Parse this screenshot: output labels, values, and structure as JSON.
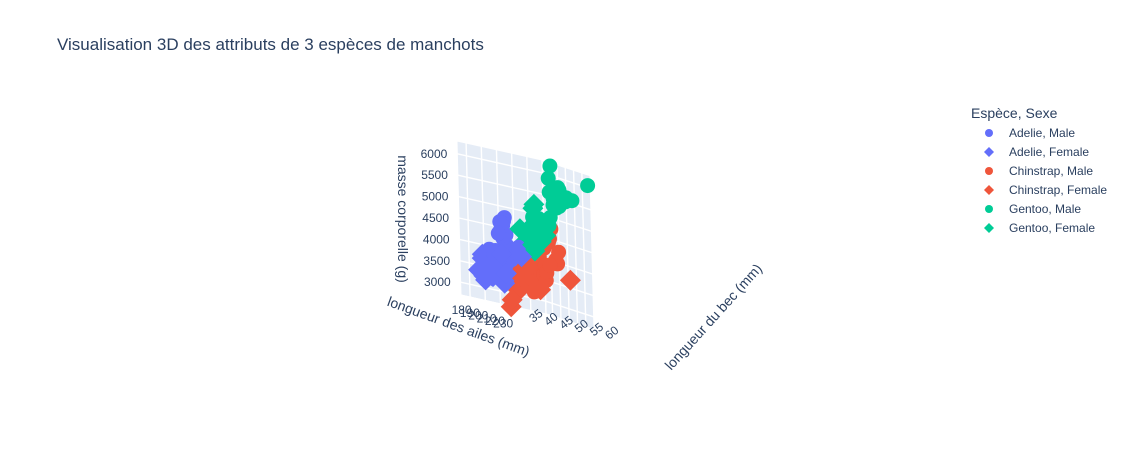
{
  "chart_data": {
    "type": "scatter3d",
    "title": "Visualisation 3D des attributs de 3 espèces de manchots",
    "axes": {
      "x": {
        "label": "longueur des ailes (mm)",
        "ticks": [
          "180",
          "190",
          "200",
          "210",
          "220",
          "230"
        ],
        "range": [
          172,
          231
        ]
      },
      "y": {
        "label": "longueur du bec (mm)",
        "ticks": [
          "35",
          "40",
          "45",
          "50",
          "55",
          "60"
        ],
        "range": [
          32,
          60
        ]
      },
      "z": {
        "label": "masse corporelle (g)",
        "ticks": [
          "3000",
          "3500",
          "4000",
          "4500",
          "5000",
          "5500",
          "6000"
        ],
        "range": [
          2700,
          6300
        ]
      }
    },
    "legend": {
      "title": "Espèce, Sexe",
      "position": "top-right",
      "entries": [
        {
          "label": "Adelie, Male",
          "symbol": "circle",
          "color": "#636efa"
        },
        {
          "label": "Adelie, Female",
          "symbol": "diamond",
          "color": "#636efa"
        },
        {
          "label": "Chinstrap, Male",
          "symbol": "circle",
          "color": "#ef553b"
        },
        {
          "label": "Chinstrap, Female",
          "symbol": "diamond",
          "color": "#ef553b"
        },
        {
          "label": "Gentoo, Male",
          "symbol": "circle",
          "color": "#00cc96"
        },
        {
          "label": "Gentoo, Female",
          "symbol": "diamond",
          "color": "#00cc96"
        }
      ]
    },
    "series": [
      {
        "name": "Adelie, Male",
        "symbol": "circle",
        "color": "#636efa",
        "points": [
          [
            181,
            39.1,
            3750
          ],
          [
            190,
            39.3,
            3650
          ],
          [
            195,
            39.2,
            4675
          ],
          [
            191,
            38.6,
            3800
          ],
          [
            198,
            37.8,
            4400
          ],
          [
            185,
            38.2,
            3950
          ],
          [
            195,
            38.8,
            3800
          ],
          [
            197,
            40.6,
            4400
          ],
          [
            184,
            40.5,
            3950
          ],
          [
            194,
            37.2,
            3900
          ],
          [
            190,
            40.2,
            3900
          ],
          [
            196,
            41.1,
            4150
          ],
          [
            184,
            42.3,
            4450
          ],
          [
            195,
            40.1,
            4300
          ],
          [
            203,
            42.0,
            4050
          ],
          [
            200,
            41.4,
            3850
          ],
          [
            210,
            41.1,
            4200
          ],
          [
            190,
            41.8,
            4700
          ],
          [
            196,
            39.6,
            4650
          ],
          [
            186,
            43.2,
            4775
          ],
          [
            199,
            39.0,
            4600
          ],
          [
            201,
            45.8,
            4150
          ],
          [
            192,
            42.7,
            4075
          ],
          [
            197,
            40.7,
            3725
          ]
        ]
      },
      {
        "name": "Adelie, Female",
        "symbol": "diamond",
        "color": "#636efa",
        "points": [
          [
            186,
            39.5,
            3800
          ],
          [
            195,
            40.3,
            3250
          ],
          [
            193,
            36.7,
            3450
          ],
          [
            181,
            38.9,
            3625
          ],
          [
            182,
            36.6,
            3700
          ],
          [
            185,
            36.2,
            3300
          ],
          [
            180,
            37.0,
            3400
          ],
          [
            184,
            39.5,
            3325
          ],
          [
            178,
            36.4,
            3400
          ],
          [
            190,
            35.9,
            3450
          ],
          [
            187,
            35.3,
            3800
          ],
          [
            191,
            36.6,
            3700
          ],
          [
            180,
            38.1,
            3200
          ],
          [
            189,
            37.7,
            3350
          ],
          [
            186,
            35.0,
            3450
          ],
          [
            208,
            36.0,
            3950
          ],
          [
            200,
            39.6,
            3500
          ],
          [
            192,
            40.9,
            3300
          ],
          [
            195,
            35.7,
            3600
          ],
          [
            212,
            41.5,
            4000
          ]
        ]
      },
      {
        "name": "Chinstrap, Male",
        "symbol": "circle",
        "color": "#ef553b",
        "points": [
          [
            193,
            50.0,
            3900
          ],
          [
            197,
            51.3,
            3650
          ],
          [
            201,
            52.7,
            3725
          ],
          [
            198,
            51.3,
            3750
          ],
          [
            195,
            52.0,
            4050
          ],
          [
            197,
            50.5,
            4000
          ],
          [
            203,
            55.8,
            4000
          ],
          [
            205,
            50.9,
            4300
          ],
          [
            201,
            53.5,
            4450
          ],
          [
            210,
            52.0,
            4800
          ],
          [
            212,
            53.8,
            4300
          ],
          [
            200,
            51.9,
            3675
          ],
          [
            210,
            50.2,
            3775
          ],
          [
            207,
            54.2,
            4100
          ],
          [
            196,
            49.7,
            3875
          ],
          [
            205,
            52.8,
            4550
          ],
          [
            193,
            50.6,
            3200
          ],
          [
            212,
            50.8,
            3950
          ],
          [
            203,
            51.7,
            3900
          ],
          [
            202,
            52.2,
            3550
          ]
        ]
      },
      {
        "name": "Chinstrap, Female",
        "symbol": "diamond",
        "color": "#ef553b",
        "points": [
          [
            192,
            46.5,
            3500
          ],
          [
            195,
            45.4,
            3525
          ],
          [
            187,
            45.2,
            3250
          ],
          [
            190,
            46.1,
            3250
          ],
          [
            191,
            46.7,
            3200
          ],
          [
            193,
            43.2,
            2900
          ],
          [
            187,
            47.0,
            3150
          ],
          [
            181,
            42.4,
            3650
          ],
          [
            178,
            46.9,
            2700
          ],
          [
            190,
            49.6,
            3475
          ],
          [
            196,
            46.4,
            3700
          ],
          [
            185,
            45.9,
            3275
          ],
          [
            201,
            50.5,
            3300
          ],
          [
            196,
            50.1,
            3400
          ],
          [
            198,
            46.8,
            3700
          ],
          [
            210,
            58.0,
            3700
          ],
          [
            189,
            45.6,
            3600
          ]
        ]
      },
      {
        "name": "Gentoo, Male",
        "symbol": "circle",
        "color": "#00cc96",
        "points": [
          [
            230,
            50.0,
            5700
          ],
          [
            230,
            49.3,
            5700
          ],
          [
            230,
            48.7,
            5550
          ],
          [
            221,
            50.0,
            5550
          ],
          [
            228,
            50.1,
            5550
          ],
          [
            221,
            49.2,
            6300
          ],
          [
            230,
            49.1,
            5850
          ],
          [
            230,
            46.3,
            5700
          ],
          [
            220,
            48.8,
            6000
          ],
          [
            230,
            51.5,
            5550
          ],
          [
            221,
            45.1,
            5000
          ],
          [
            224,
            51.1,
            5400
          ],
          [
            226,
            50.8,
            5450
          ],
          [
            226,
            47.5,
            5100
          ],
          [
            222,
            49.6,
            5400
          ],
          [
            217,
            46.8,
            4875
          ],
          [
            224,
            50.2,
            5350
          ],
          [
            222,
            55.9,
            5600
          ],
          [
            225,
            47.3,
            4900
          ],
          [
            230,
            49.5,
            5800
          ],
          [
            228,
            59.6,
            6050
          ],
          [
            220,
            48.2,
            5000
          ],
          [
            216,
            44.4,
            5000
          ],
          [
            229,
            52.1,
            5650
          ]
        ]
      },
      {
        "name": "Gentoo, Female",
        "symbol": "diamond",
        "color": "#00cc96",
        "points": [
          [
            211,
            46.1,
            4500
          ],
          [
            210,
            48.7,
            4450
          ],
          [
            210,
            46.5,
            4550
          ],
          [
            212,
            45.4,
            4800
          ],
          [
            211,
            43.3,
            4400
          ],
          [
            213,
            40.9,
            4650
          ],
          [
            214,
            45.1,
            5200
          ],
          [
            212,
            46.2,
            4375
          ],
          [
            215,
            45.2,
            5300
          ],
          [
            210,
            46.5,
            4200
          ],
          [
            217,
            47.5,
            4875
          ],
          [
            213,
            43.8,
            4300
          ],
          [
            215,
            44.0,
            4600
          ],
          [
            214,
            49.1,
            4625
          ],
          [
            215,
            45.5,
            4650
          ],
          [
            209,
            47.2,
            4775
          ],
          [
            216,
            46.6,
            4550
          ],
          [
            217,
            47.0,
            4700
          ],
          [
            220,
            45.2,
            4800
          ],
          [
            218,
            43.6,
            4350
          ]
        ]
      }
    ]
  }
}
